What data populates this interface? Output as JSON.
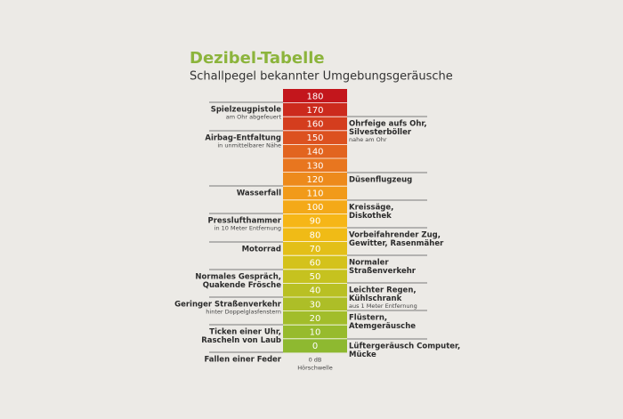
{
  "header": {
    "title": "Dezibel-Tabelle",
    "subtitle": "Schallpegel bekannter Umgebungsgeräusche"
  },
  "scale": {
    "levels": [
      "180",
      "170",
      "160",
      "150",
      "140",
      "130",
      "120",
      "110",
      "100",
      "90",
      "80",
      "70",
      "60",
      "50",
      "40",
      "30",
      "20",
      "10",
      "0"
    ],
    "colors": [
      "#c3161c",
      "#cc2a1d",
      "#d43d1e",
      "#dc511f",
      "#e2641f",
      "#e8761f",
      "#ed8a1c",
      "#f19a1a",
      "#f4a918",
      "#f6b617",
      "#f0bb16",
      "#e3bf18",
      "#d4c21b",
      "#c6c21f",
      "#b9c023",
      "#adbe27",
      "#a2bd2a",
      "#97bb2d",
      "#8eb930"
    ],
    "threshold": {
      "label": "0 dB",
      "note": "Hörschwelle"
    }
  },
  "left": [
    {
      "lines": [
        "Spielzeugpistole"
      ],
      "note": "am Ohr abgefeuert"
    },
    {
      "lines": [
        "Airbag-Entfaltung"
      ],
      "note": "in unmittelbarer Nähe"
    },
    {
      "lines": [
        "Wasserfall"
      ]
    },
    {
      "lines": [
        "Presslufthammer"
      ],
      "note": "in 10 Meter Entfernung"
    },
    {
      "lines": [
        "Motorrad"
      ]
    },
    {
      "lines": [
        "Normales Gespräch,",
        "Quakende Frösche"
      ]
    },
    {
      "lines": [
        "Geringer Straßenverkehr"
      ],
      "note": "hinter Doppelglasfenstern"
    },
    {
      "lines": [
        "Ticken einer Uhr,",
        "Rascheln von Laub"
      ]
    },
    {
      "lines": [
        "Fallen einer Feder"
      ]
    }
  ],
  "right": [
    {
      "lines": [
        "Ohrfeige aufs Ohr,",
        "Silvesterböller"
      ],
      "note": "nahe am Ohr"
    },
    {
      "lines": [
        "Düsenflugzeug"
      ]
    },
    {
      "lines": [
        "Kreissäge,",
        "Diskothek"
      ]
    },
    {
      "lines": [
        "Vorbeifahrender Zug,",
        "Gewitter, Rasenmäher"
      ]
    },
    {
      "lines": [
        "Normaler",
        "Straßenverkehr"
      ]
    },
    {
      "lines": [
        "Leichter Regen,",
        "Kühlschrank"
      ],
      "note": "aus 1 Meter Entfernung"
    },
    {
      "lines": [
        "Flüstern,",
        "Atemgeräusche"
      ]
    },
    {
      "lines": [
        "Lüftergeräusch Computer,",
        "Mücke"
      ]
    }
  ]
}
